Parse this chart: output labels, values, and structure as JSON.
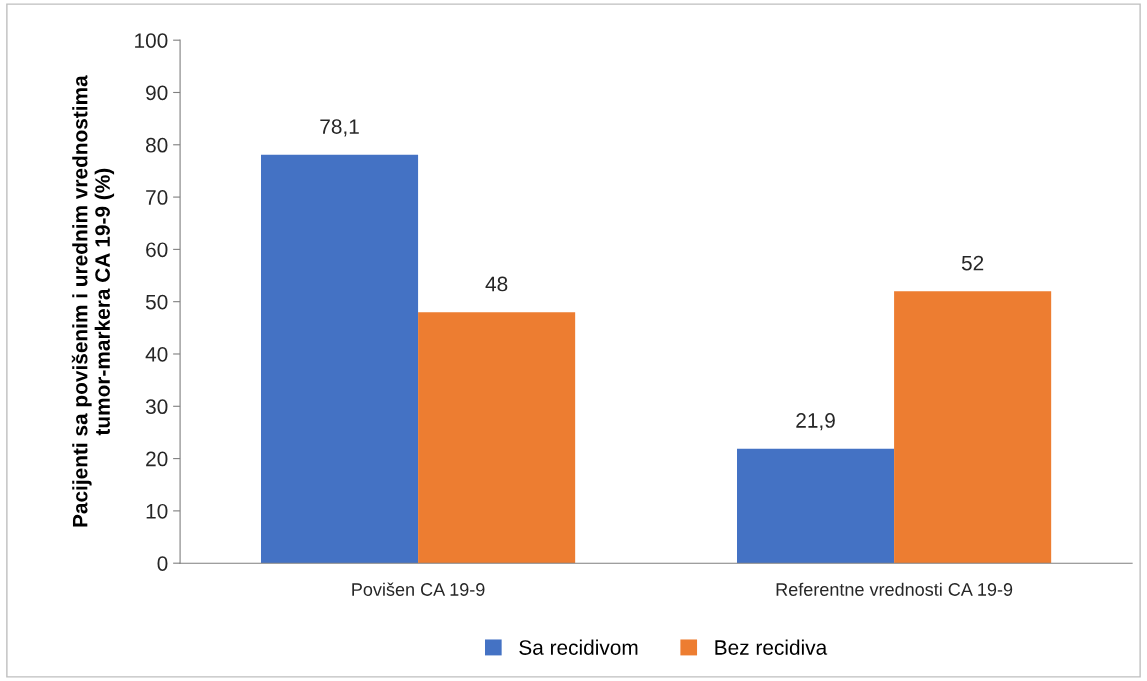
{
  "chart_data": {
    "type": "bar",
    "ylabel": "Pacijenti sa povišenim i urednim vrednostima\ntumor-markera CA 19-9 (%)",
    "categories": [
      "Povišen CA 19-9",
      "Referentne vrednosti CA 19-9"
    ],
    "series": [
      {
        "name": "Sa recidivom",
        "color": "#4472c4",
        "values": [
          78.1,
          21.9
        ],
        "value_labels": [
          "78,1",
          "21,9"
        ]
      },
      {
        "name": "Bez recidiva",
        "color": "#ed7d31",
        "values": [
          48,
          52
        ],
        "value_labels": [
          "48",
          "52"
        ]
      }
    ],
    "ylim": [
      0,
      100
    ],
    "yticks": [
      0,
      10,
      20,
      30,
      40,
      50,
      60,
      70,
      80,
      90,
      100
    ],
    "grid": false,
    "legend": "bottom"
  }
}
